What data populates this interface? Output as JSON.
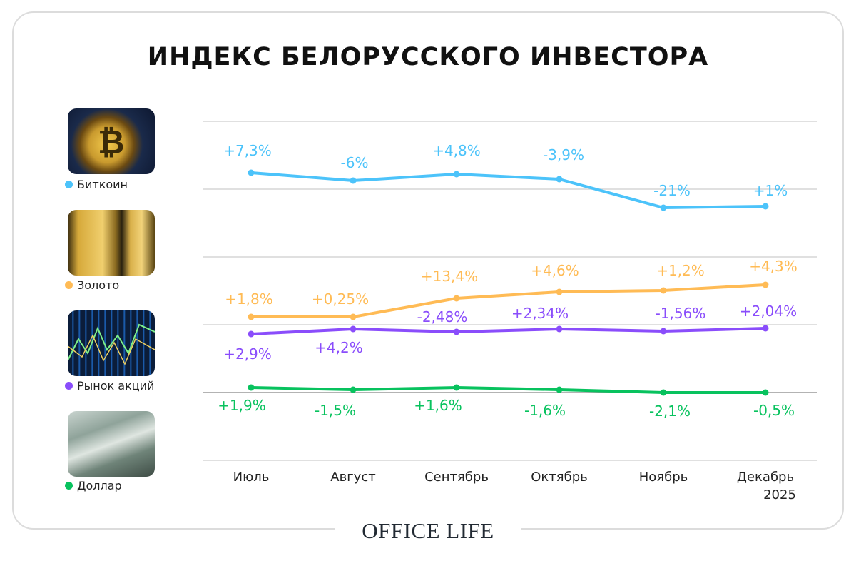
{
  "title": "ИНДЕКС БЕЛОРУССКОГО ИНВЕСТОРА",
  "logo": "OFFICE LIFE",
  "chart_data": {
    "type": "line",
    "title": "ИНДЕКС БЕЛОРУССКОГО ИНВЕСТОРА",
    "categories": [
      "Июль",
      "Август",
      "Сентябрь",
      "Октябрь",
      "Ноябрь",
      "Декабрь"
    ],
    "year_label": "2025",
    "grid": true,
    "legend_placement": "left",
    "series": [
      {
        "name": "Биткоин",
        "color": "#4cc3fa",
        "icon": "bitcoin-image",
        "labels": [
          "+7,3%",
          "-6%",
          "+4,8%",
          "-3,9%",
          "-21%",
          "+1%"
        ],
        "values": [
          7.3,
          -6,
          4.8,
          -3.9,
          -21,
          1
        ]
      },
      {
        "name": "Золото",
        "color": "#ffbb55",
        "icon": "gold-bars-image",
        "labels": [
          "+1,8%",
          "+0,25%",
          "+13,4%",
          "+4,6%",
          "+1,2%",
          "+4,3%"
        ],
        "values": [
          1.8,
          0.25,
          13.4,
          4.6,
          1.2,
          4.3
        ]
      },
      {
        "name": "Рынок акций",
        "color": "#8a4dfb",
        "icon": "stock-chart-image",
        "labels": [
          "+2,9%",
          "+4,2%",
          "-2,48%",
          "+2,34%",
          "-1,56%",
          "+2,04%"
        ],
        "values": [
          2.9,
          4.2,
          -2.48,
          2.34,
          -1.56,
          2.04
        ]
      },
      {
        "name": "Доллар",
        "color": "#08c25e",
        "icon": "dollar-bills-image",
        "labels": [
          "+1,9%",
          "-1,5%",
          "+1,6%",
          "-1,6%",
          "-2,1%",
          "-0,5%"
        ],
        "values": [
          1.9,
          -1.5,
          1.6,
          -1.6,
          -2.1,
          -0.5
        ]
      }
    ]
  }
}
